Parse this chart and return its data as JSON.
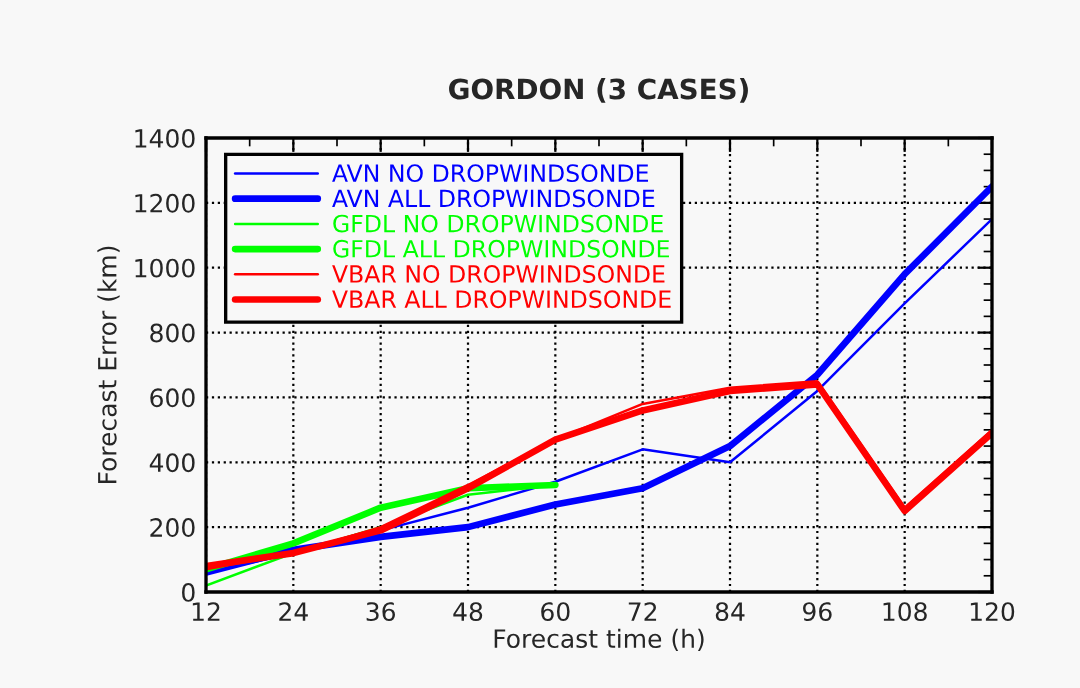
{
  "chart_data": {
    "type": "line",
    "title": "GORDON (3 CASES)",
    "xlabel": "Forecast time (h)",
    "ylabel": "Forecast Error (km)",
    "x": [
      12,
      24,
      36,
      48,
      60,
      72,
      84,
      96,
      108,
      120
    ],
    "xlim": [
      12,
      120
    ],
    "xticks": [
      12,
      24,
      36,
      48,
      60,
      72,
      84,
      96,
      108,
      120
    ],
    "ylim": [
      0,
      1400
    ],
    "yticks": [
      0,
      200,
      400,
      600,
      800,
      1000,
      1200,
      1400
    ],
    "grid": true,
    "legend": "top left",
    "marker": "none",
    "line_style": "solid",
    "series": [
      {
        "name": "AVN NO DROPWINDSONDE",
        "color": "#0000ff",
        "values": [
          60,
          120,
          190,
          260,
          340,
          440,
          400,
          620,
          890,
          1150
        ]
      },
      {
        "name": "AVN ALL DROPWINDSONDE",
        "color": "#0000ff",
        "values": [
          60,
          130,
          170,
          200,
          270,
          320,
          450,
          670,
          980,
          1250
        ]
      },
      {
        "name": "GFDL NO DROPWINDSONDE",
        "color": "#00ff00",
        "values": [
          20,
          120,
          200,
          300,
          330,
          null,
          null,
          null,
          null,
          null
        ]
      },
      {
        "name": "GFDL ALL DROPWINDSONDE",
        "color": "#00ff00",
        "values": [
          70,
          150,
          260,
          320,
          330,
          null,
          null,
          null,
          null,
          null
        ]
      },
      {
        "name": "VBAR NO DROPWINDSONDE",
        "color": "#ff0000",
        "values": [
          70,
          120,
          200,
          330,
          470,
          580,
          630,
          650,
          260,
          500
        ]
      },
      {
        "name": "VBAR ALL DROPWINDSONDE",
        "color": "#ff0000",
        "values": [
          80,
          120,
          190,
          320,
          470,
          560,
          620,
          640,
          250,
          490
        ]
      }
    ]
  }
}
